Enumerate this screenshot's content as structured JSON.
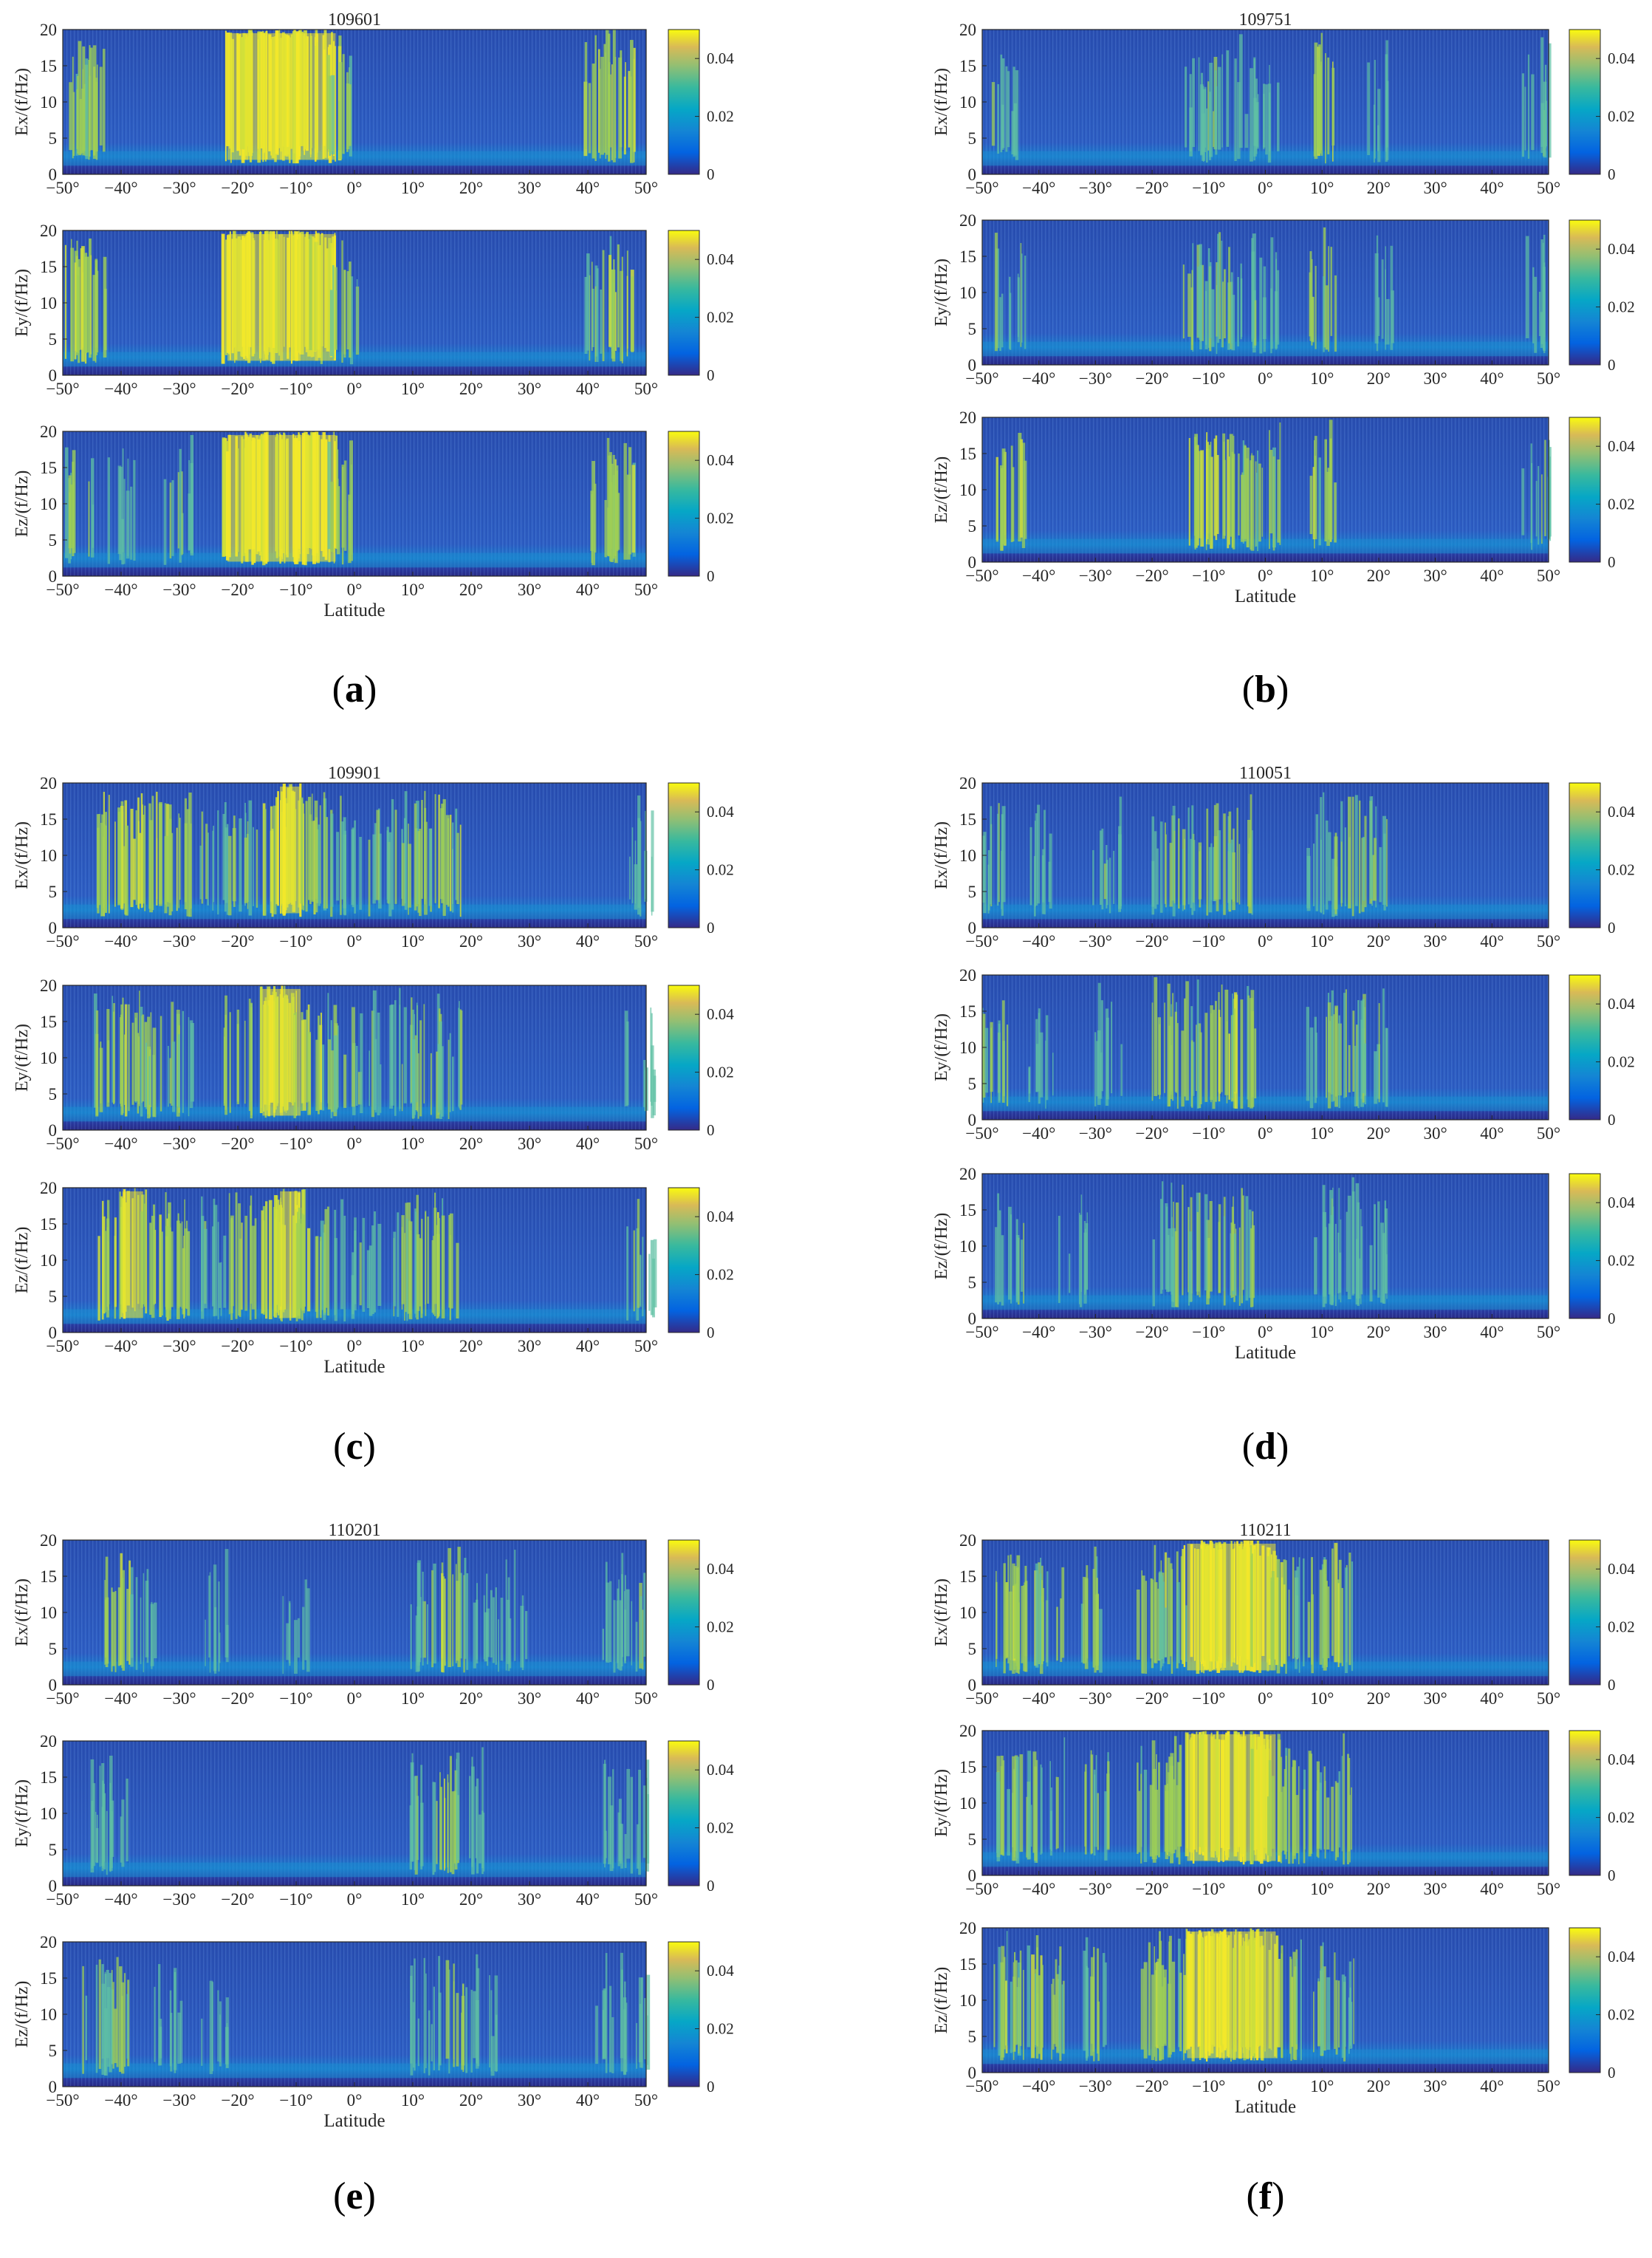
{
  "chart_data": [
    {
      "panel_label": "a",
      "title": "109601",
      "type": "heatmap",
      "xlabel": "Latitude",
      "xlim": [
        -50,
        50
      ],
      "ylim": [
        0,
        20
      ],
      "x_ticks": [
        "−50°",
        "−40°",
        "−30°",
        "−20°",
        "−10°",
        "0°",
        "10°",
        "20°",
        "30°",
        "40°",
        "50°"
      ],
      "y_ticks": [
        "0",
        "5",
        "10",
        "15",
        "20"
      ],
      "colorbar": {
        "range": [
          0,
          0.05
        ],
        "ticks": [
          "0",
          "0.02",
          "0.04"
        ]
      },
      "subplots": [
        {
          "ylabel": "Ex/(f/Hz)",
          "bursts": [
            [
              -47,
              0.7
            ],
            [
              -45,
              0.6
            ],
            [
              -20,
              1.0
            ],
            [
              -17,
              1.0
            ],
            [
              -14,
              1.0
            ],
            [
              -11,
              1.0
            ],
            [
              -8,
              1.0
            ],
            [
              -5,
              0.9
            ],
            [
              -2,
              0.6
            ],
            [
              42,
              0.7
            ],
            [
              46,
              0.8
            ]
          ]
        },
        {
          "ylabel": "Ey/(f/Hz)",
          "bursts": [
            [
              -48,
              0.8
            ],
            [
              -45,
              0.7
            ],
            [
              -20,
              1.0
            ],
            [
              -17,
              1.0
            ],
            [
              -14,
              1.0
            ],
            [
              -11,
              1.0
            ],
            [
              -8,
              1.0
            ],
            [
              -5,
              0.9
            ],
            [
              -2,
              0.6
            ],
            [
              42,
              0.6
            ],
            [
              46,
              0.7
            ]
          ]
        },
        {
          "ylabel": "Ez/(f/Hz)",
          "bursts": [
            [
              -47,
              0.6
            ],
            [
              -40,
              0.4
            ],
            [
              -30,
              0.5
            ],
            [
              -20,
              0.9
            ],
            [
              -17,
              1.0
            ],
            [
              -14,
              1.0
            ],
            [
              -11,
              1.0
            ],
            [
              -8,
              1.0
            ],
            [
              -5,
              1.0
            ],
            [
              -2,
              0.6
            ],
            [
              42,
              0.6
            ],
            [
              46,
              0.7
            ]
          ]
        }
      ]
    },
    {
      "panel_label": "b",
      "title": "109751",
      "type": "heatmap",
      "xlabel": "Latitude",
      "xlim": [
        -50,
        50
      ],
      "ylim": [
        0,
        20
      ],
      "x_ticks": [
        "−50°",
        "−40°",
        "−30°",
        "−20°",
        "−10°",
        "0°",
        "10°",
        "20°",
        "30°",
        "40°",
        "50°"
      ],
      "y_ticks": [
        "0",
        "5",
        "10",
        "15",
        "20"
      ],
      "colorbar": {
        "range": [
          0,
          0.05
        ],
        "ticks": [
          "0",
          "0.02",
          "0.04"
        ]
      },
      "subplots": [
        {
          "ylabel": "Ex/(f/Hz)",
          "bursts": [
            [
              -46,
              0.5
            ],
            [
              -12,
              0.5
            ],
            [
              -8,
              0.5
            ],
            [
              -4,
              0.4
            ],
            [
              0,
              0.4
            ],
            [
              10,
              0.7
            ],
            [
              20,
              0.3
            ],
            [
              48,
              0.5
            ]
          ]
        },
        {
          "ylabel": "Ey/(f/Hz)",
          "bursts": [
            [
              -45,
              0.5
            ],
            [
              -12,
              0.6
            ],
            [
              -8,
              0.6
            ],
            [
              -4,
              0.5
            ],
            [
              0,
              0.4
            ],
            [
              10,
              0.6
            ],
            [
              20,
              0.3
            ],
            [
              48,
              0.4
            ]
          ]
        },
        {
          "ylabel": "Ez/(f/Hz)",
          "bursts": [
            [
              -45,
              0.7
            ],
            [
              -12,
              0.8
            ],
            [
              -8,
              0.8
            ],
            [
              -4,
              0.7
            ],
            [
              0,
              0.6
            ],
            [
              10,
              0.7
            ],
            [
              48,
              0.5
            ]
          ]
        }
      ]
    },
    {
      "panel_label": "c",
      "title": "109901",
      "type": "heatmap",
      "xlabel": "Latitude",
      "xlim": [
        -50,
        50
      ],
      "ylim": [
        0,
        20
      ],
      "x_ticks": [
        "−50°",
        "−40°",
        "−30°",
        "−20°",
        "−10°",
        "0°",
        "10°",
        "20°",
        "30°",
        "40°",
        "50°"
      ],
      "y_ticks": [
        "0",
        "5",
        "10",
        "15",
        "20"
      ],
      "colorbar": {
        "range": [
          0,
          0.05
        ],
        "ticks": [
          "0",
          "0.02",
          "0.04"
        ]
      },
      "subplots": [
        {
          "ylabel": "Ex/(f/Hz)",
          "bursts": [
            [
              -42,
              0.7
            ],
            [
              -38,
              0.8
            ],
            [
              -34,
              0.8
            ],
            [
              -30,
              0.7
            ],
            [
              -24,
              0.5
            ],
            [
              -19,
              0.6
            ],
            [
              -14,
              0.8
            ],
            [
              -11,
              0.9
            ],
            [
              -8,
              0.8
            ],
            [
              -4,
              0.6
            ],
            [
              2,
              0.5
            ],
            [
              8,
              0.6
            ],
            [
              12,
              0.6
            ],
            [
              16,
              0.7
            ],
            [
              49,
              0.5
            ]
          ]
        },
        {
          "ylabel": "Ey/(f/Hz)",
          "bursts": [
            [
              -42,
              0.6
            ],
            [
              -38,
              0.7
            ],
            [
              -34,
              0.6
            ],
            [
              -30,
              0.5
            ],
            [
              -20,
              0.7
            ],
            [
              -14,
              0.9
            ],
            [
              -11,
              0.9
            ],
            [
              -8,
              0.8
            ],
            [
              -4,
              0.6
            ],
            [
              2,
              0.5
            ],
            [
              8,
              0.5
            ],
            [
              12,
              0.6
            ],
            [
              16,
              0.6
            ],
            [
              49,
              0.4
            ]
          ]
        },
        {
          "ylabel": "Ez/(f/Hz)",
          "bursts": [
            [
              -42,
              0.8
            ],
            [
              -38,
              0.9
            ],
            [
              -34,
              0.8
            ],
            [
              -30,
              0.7
            ],
            [
              -24,
              0.5
            ],
            [
              -19,
              0.7
            ],
            [
              -14,
              0.8
            ],
            [
              -11,
              0.9
            ],
            [
              -8,
              0.8
            ],
            [
              -4,
              0.6
            ],
            [
              2,
              0.5
            ],
            [
              8,
              0.6
            ],
            [
              12,
              0.6
            ],
            [
              16,
              0.7
            ],
            [
              49,
              0.5
            ]
          ]
        }
      ]
    },
    {
      "panel_label": "d",
      "title": "110051",
      "type": "heatmap",
      "xlabel": "Latitude",
      "xlim": [
        -50,
        50
      ],
      "ylim": [
        0,
        20
      ],
      "x_ticks": [
        "−50°",
        "−40°",
        "−30°",
        "−20°",
        "−10°",
        "0°",
        "10°",
        "20°",
        "30°",
        "40°",
        "50°"
      ],
      "y_ticks": [
        "0",
        "5",
        "10",
        "15",
        "20"
      ],
      "colorbar": {
        "range": [
          0,
          0.05
        ],
        "ticks": [
          "0",
          "0.02",
          "0.04"
        ]
      },
      "subplots": [
        {
          "ylabel": "Ex/(f/Hz)",
          "bursts": [
            [
              -48,
              0.5
            ],
            [
              -40,
              0.4
            ],
            [
              -28,
              0.5
            ],
            [
              -18,
              0.5
            ],
            [
              -14,
              0.6
            ],
            [
              -8,
              0.6
            ],
            [
              -4,
              0.6
            ],
            [
              10,
              0.5
            ],
            [
              15,
              0.6
            ],
            [
              19,
              0.6
            ]
          ]
        },
        {
          "ylabel": "Ey/(f/Hz)",
          "bursts": [
            [
              -48,
              0.6
            ],
            [
              -40,
              0.4
            ],
            [
              -28,
              0.4
            ],
            [
              -18,
              0.6
            ],
            [
              -14,
              0.6
            ],
            [
              -8,
              0.7
            ],
            [
              -4,
              0.7
            ],
            [
              10,
              0.6
            ],
            [
              15,
              0.6
            ],
            [
              19,
              0.5
            ]
          ]
        },
        {
          "ylabel": "Ez/(f/Hz)",
          "bursts": [
            [
              -45,
              0.5
            ],
            [
              -34,
              0.4
            ],
            [
              -18,
              0.5
            ],
            [
              -14,
              0.6
            ],
            [
              -8,
              0.6
            ],
            [
              -4,
              0.6
            ],
            [
              10,
              0.5
            ],
            [
              15,
              0.5
            ],
            [
              19,
              0.5
            ]
          ]
        }
      ]
    },
    {
      "panel_label": "e",
      "title": "110201",
      "type": "heatmap",
      "xlabel": "Latitude",
      "xlim": [
        -50,
        50
      ],
      "ylim": [
        0,
        20
      ],
      "x_ticks": [
        "−50°",
        "−40°",
        "−30°",
        "−20°",
        "−10°",
        "0°",
        "10°",
        "20°",
        "30°",
        "40°",
        "50°"
      ],
      "y_ticks": [
        "0",
        "5",
        "10",
        "15",
        "20"
      ],
      "colorbar": {
        "range": [
          0,
          0.05
        ],
        "ticks": [
          "0",
          "0.02",
          "0.04"
        ]
      },
      "subplots": [
        {
          "ylabel": "Ex/(f/Hz)",
          "bursts": [
            [
              -41,
              0.7
            ],
            [
              -36,
              0.4
            ],
            [
              -24,
              0.3
            ],
            [
              -10,
              0.3
            ],
            [
              12,
              0.5
            ],
            [
              17,
              0.7
            ],
            [
              22,
              0.5
            ],
            [
              27,
              0.4
            ],
            [
              44,
              0.4
            ],
            [
              48,
              0.5
            ]
          ]
        },
        {
          "ylabel": "Ey/(f/Hz)",
          "bursts": [
            [
              -44,
              0.4
            ],
            [
              -41,
              0.4
            ],
            [
              12,
              0.5
            ],
            [
              16,
              0.7
            ],
            [
              20,
              0.5
            ],
            [
              44,
              0.4
            ],
            [
              48,
              0.4
            ]
          ]
        },
        {
          "ylabel": "Ez/(f/Hz)",
          "bursts": [
            [
              -44,
              0.5
            ],
            [
              -41,
              0.6
            ],
            [
              -32,
              0.4
            ],
            [
              -24,
              0.3
            ],
            [
              12,
              0.4
            ],
            [
              17,
              0.6
            ],
            [
              22,
              0.4
            ],
            [
              44,
              0.4
            ],
            [
              48,
              0.4
            ]
          ]
        }
      ]
    },
    {
      "panel_label": "f",
      "title": "110211",
      "type": "heatmap",
      "xlabel": "Latitude",
      "xlim": [
        -50,
        50
      ],
      "ylim": [
        0,
        20
      ],
      "x_ticks": [
        "−50°",
        "−40°",
        "−30°",
        "−20°",
        "−10°",
        "0°",
        "10°",
        "20°",
        "30°",
        "40°",
        "50°"
      ],
      "y_ticks": [
        "0",
        "5",
        "10",
        "15",
        "20"
      ],
      "colorbar": {
        "range": [
          0,
          0.05
        ],
        "ticks": [
          "0",
          "0.02",
          "0.04"
        ]
      },
      "subplots": [
        {
          "ylabel": "Ex/(f/Hz)",
          "bursts": [
            [
              -46,
              0.7
            ],
            [
              -42,
              0.7
            ],
            [
              -38,
              0.6
            ],
            [
              -30,
              0.6
            ],
            [
              -20,
              0.7
            ],
            [
              -16,
              0.6
            ],
            [
              -12,
              1.0
            ],
            [
              -9,
              1.0
            ],
            [
              -6,
              1.0
            ],
            [
              -3,
              1.0
            ],
            [
              0,
              0.9
            ],
            [
              3,
              0.8
            ],
            [
              8,
              0.6
            ],
            [
              13,
              0.7
            ]
          ]
        },
        {
          "ylabel": "Ey/(f/Hz)",
          "bursts": [
            [
              -46,
              0.6
            ],
            [
              -42,
              0.6
            ],
            [
              -38,
              0.5
            ],
            [
              -30,
              0.6
            ],
            [
              -20,
              0.7
            ],
            [
              -16,
              0.7
            ],
            [
              -12,
              1.0
            ],
            [
              -9,
              1.0
            ],
            [
              -6,
              1.0
            ],
            [
              -3,
              0.9
            ],
            [
              0,
              0.9
            ],
            [
              3,
              0.7
            ],
            [
              8,
              0.6
            ],
            [
              13,
              0.6
            ]
          ]
        },
        {
          "ylabel": "Ez/(f/Hz)",
          "bursts": [
            [
              -46,
              0.7
            ],
            [
              -42,
              0.7
            ],
            [
              -38,
              0.6
            ],
            [
              -30,
              0.6
            ],
            [
              -20,
              0.7
            ],
            [
              -16,
              0.7
            ],
            [
              -12,
              1.0
            ],
            [
              -9,
              1.0
            ],
            [
              -6,
              1.0
            ],
            [
              -3,
              0.9
            ],
            [
              0,
              0.9
            ],
            [
              3,
              0.8
            ],
            [
              8,
              0.6
            ],
            [
              13,
              0.6
            ]
          ]
        }
      ]
    }
  ]
}
